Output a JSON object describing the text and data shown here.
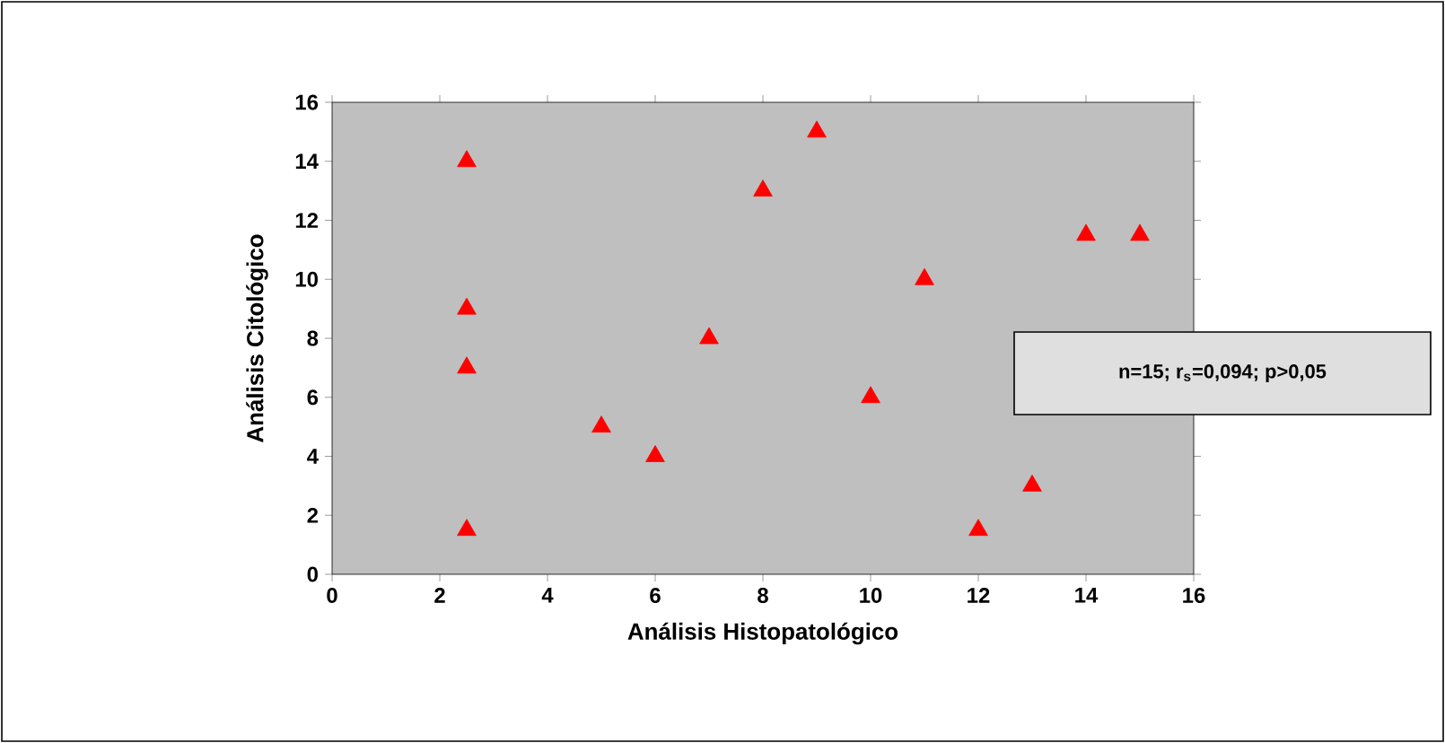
{
  "chart_data": {
    "type": "scatter",
    "xlabel": "Análisis Histopatológico",
    "ylabel": "Análisis Citológico",
    "x": [
      2.5,
      2.5,
      2.5,
      2.5,
      5,
      6,
      7,
      8,
      9,
      10,
      11,
      12,
      13,
      14,
      15
    ],
    "values": [
      14,
      9,
      7,
      1.5,
      5,
      4,
      8,
      13,
      15,
      6,
      10,
      1.5,
      3,
      11.5,
      11.5
    ],
    "color": "#ff0000",
    "marker": "triangle",
    "grid": false,
    "xlim": [
      0,
      16
    ],
    "ylim": [
      0,
      16
    ],
    "xticks": [
      0,
      2,
      4,
      6,
      8,
      10,
      12,
      14,
      16
    ],
    "yticks": [
      0,
      2,
      4,
      6,
      8,
      10,
      12,
      14,
      16
    ],
    "annotations": [
      "n=15; r$_{s}$=0,094; p>0,05"
    ]
  }
}
